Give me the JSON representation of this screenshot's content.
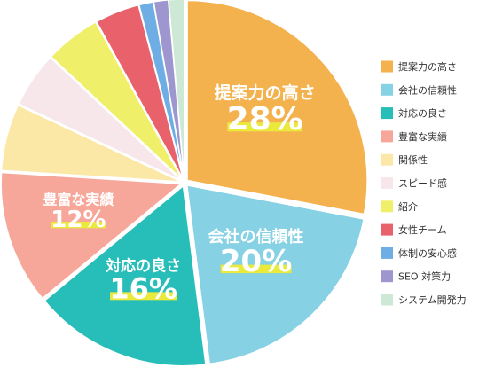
{
  "chart_data": {
    "type": "pie",
    "title": "",
    "legend_position": "right",
    "slices": [
      {
        "name": "提案力の高さ",
        "value": 28,
        "label": "28%",
        "color": "#F4B24E"
      },
      {
        "name": "会社の信頼性",
        "value": 20,
        "label": "20%",
        "color": "#86D1E3"
      },
      {
        "name": "対応の良さ",
        "value": 16,
        "label": "16%",
        "color": "#27BDB8"
      },
      {
        "name": "豊富な実績",
        "value": 12,
        "label": "12%",
        "color": "#F7A69A"
      },
      {
        "name": "関係性",
        "value": 6,
        "label": "",
        "color": "#FBE7A6"
      },
      {
        "name": "スピード感",
        "value": 5,
        "label": "",
        "color": "#F7E7EA"
      },
      {
        "name": "紹介",
        "value": 5,
        "label": "",
        "color": "#EFEF6A"
      },
      {
        "name": "女性チーム",
        "value": 4,
        "label": "",
        "color": "#E9616A"
      },
      {
        "name": "体制の安心感",
        "value": 1.3,
        "label": "",
        "color": "#6FAEE5"
      },
      {
        "name": "SEO 対策力",
        "value": 1.3,
        "label": "",
        "color": "#9D96CF"
      },
      {
        "name": "システム開発力",
        "value": 1.4,
        "label": "",
        "color": "#CDE9D6"
      }
    ]
  }
}
